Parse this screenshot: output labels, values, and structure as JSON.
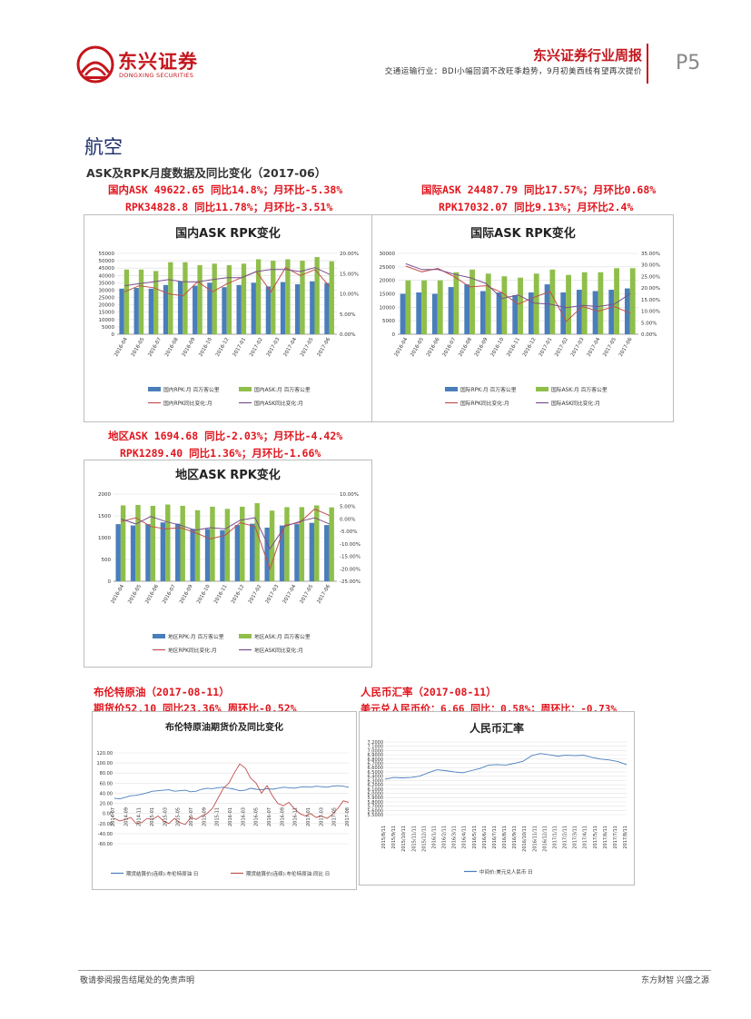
{
  "header": {
    "logo_cn": "东兴证券",
    "logo_en": "DONGXING SECURITIES",
    "report_title": "东兴证券行业周报",
    "report_subtitle": "交通运输行业：BDI小幅回调不改旺季趋势，9月初美西线有望再次提价",
    "page_number": "P5"
  },
  "section": {
    "title": "航空",
    "subtitle": "ASK及RPK月度数据及同比变化（2017-06）"
  },
  "captions": {
    "domestic_line1": "国内ASK 49622.65 同比14.8%；月环比-5.38%",
    "domestic_line2": "RPK34828.8 同比11.78%；月环比-3.51%",
    "intl_line1": "国际ASK 24487.79 同比17.57%；月环比0.68%",
    "intl_line2": "RPK17032.07 同比9.13%；月环比2.4%",
    "regional_line1": "地区ASK 1694.68 同比-2.03%；月环比-4.42%",
    "regional_line2": "RPK1289.40 同比1.36%；月环比-1.66%",
    "brent_line1": "布伦特原油（2017-08-11）",
    "brent_line2": "期货价52.10 同比23.36% 周环比-0.52%",
    "rmb_line1": "人民币汇率（2017-08-11）",
    "rmb_line2": "美元兑人民币价：6.66 同比：0.58%；周环比：-0.73%"
  },
  "footer": {
    "left": "敬请参阅报告结尾处的免责声明",
    "right": "东方财智 兴盛之源"
  },
  "colors": {
    "brand_red": "#c4161c",
    "caption_red": "#e0161e",
    "bar_blue": "#4a7ebb",
    "bar_green": "#8fbf4a",
    "line_red": "#c0504d",
    "line_purple": "#7b4f8e",
    "line_blue": "#4a7ebb"
  },
  "chart_data": [
    {
      "id": "domestic",
      "type": "bar",
      "title": "国内ASK RPK变化",
      "categories": [
        "2016-04",
        "2016-05",
        "2016-06",
        "2016-07",
        "2016-08",
        "2016-09",
        "2016-10",
        "2016-11",
        "2016-12",
        "2017-01",
        "2017-02",
        "2017-03",
        "2017-04",
        "2017-05",
        "2017-06"
      ],
      "x_tick_labels": [
        "2016-04",
        "2016-05",
        "2016-07",
        "2016-08",
        "2016-09",
        "2016-10",
        "2016-12",
        "2017-01",
        "2017-02",
        "2017-03",
        "2017-04",
        "2017-05",
        "2017-06"
      ],
      "y_left_ticks": [
        "0",
        "5000",
        "10000",
        "15000",
        "20000",
        "25000",
        "30000",
        "35000",
        "40000",
        "45000",
        "50000",
        "55000"
      ],
      "y_right_ticks": [
        "0.00%",
        "5.00%",
        "10.00%",
        "15.00%",
        "20.00%"
      ],
      "ylim_left": [
        0,
        55000
      ],
      "ylim_right": [
        0,
        20
      ],
      "series": [
        {
          "name": "国内RPK:月 百万客公里",
          "kind": "bar",
          "color": "#4a7ebb",
          "values": [
            31000,
            31500,
            31000,
            33500,
            36000,
            33000,
            35000,
            32000,
            33500,
            35000,
            32500,
            35500,
            34000,
            36000,
            34800
          ]
        },
        {
          "name": "国内ASK:月 百万客公里",
          "kind": "bar",
          "color": "#8fbf4a",
          "values": [
            44000,
            44000,
            43000,
            49000,
            49000,
            47000,
            48000,
            47000,
            48000,
            51000,
            50000,
            51000,
            50000,
            52500,
            49600
          ]
        },
        {
          "name": "国内RPK同比变化:月",
          "kind": "line",
          "color": "#c0504d",
          "values": [
            10.5,
            12.0,
            11.5,
            10.0,
            9.5,
            13.0,
            10.5,
            12.5,
            14.0,
            15.5,
            10.5,
            16.5,
            14.5,
            16.0,
            11.8
          ]
        },
        {
          "name": "国内ASK同比变化:月",
          "kind": "line",
          "color": "#7b4f8e",
          "values": [
            12.0,
            12.5,
            13.0,
            13.5,
            13.0,
            13.0,
            13.5,
            14.0,
            14.0,
            15.5,
            16.0,
            16.0,
            15.5,
            16.5,
            14.8
          ]
        }
      ],
      "legend": [
        "国内RPK:月 百万客公里",
        "国内ASK:月 百万客公里",
        "国内RPK同比变化:月",
        "国内ASK同比变化:月"
      ]
    },
    {
      "id": "international",
      "type": "bar",
      "title": "国际ASK RPK变化",
      "categories": [
        "2016-04",
        "2016-05",
        "2016-06",
        "2016-07",
        "2016-08",
        "2016-09",
        "2016-10",
        "2016-11",
        "2016-12",
        "2017-01",
        "2017-02",
        "2017-03",
        "2017-04",
        "2017-05",
        "2017-06"
      ],
      "x_tick_labels": [
        "2016-04",
        "2016-05",
        "2016-06",
        "2016-07",
        "2016-08",
        "2016-09",
        "2016-10",
        "2016-11",
        "2016-12",
        "2017-01",
        "2017-02",
        "2017-03",
        "2017-04",
        "2017-05",
        "2017-06"
      ],
      "y_left_ticks": [
        "0",
        "5000",
        "10000",
        "15000",
        "20000",
        "25000",
        "30000"
      ],
      "y_right_ticks": [
        "0.00%",
        "5.00%",
        "10.00%",
        "15.00%",
        "20.00%",
        "25.00%",
        "30.00%",
        "35.00%"
      ],
      "ylim_left": [
        0,
        30000
      ],
      "ylim_right": [
        0,
        35
      ],
      "series": [
        {
          "name": "国际RPK:月 百万客公里",
          "kind": "bar",
          "color": "#4a7ebb",
          "values": [
            15000,
            15500,
            15000,
            17500,
            18500,
            16000,
            15500,
            14500,
            15500,
            18500,
            15500,
            16500,
            16000,
            16500,
            17000
          ]
        },
        {
          "name": "国际ASK:月 百万客公里",
          "kind": "bar",
          "color": "#8fbf4a",
          "values": [
            20000,
            20000,
            20000,
            23000,
            24000,
            22500,
            21500,
            21000,
            22500,
            24000,
            22000,
            23000,
            23000,
            24500,
            24500
          ]
        },
        {
          "name": "国际RPK同比变化:月",
          "kind": "line",
          "color": "#c0504d",
          "values": [
            29.5,
            27.0,
            28.5,
            25.0,
            20.5,
            21.0,
            18.0,
            13.0,
            16.0,
            18.5,
            5.5,
            12.0,
            10.0,
            12.0,
            9.1
          ]
        },
        {
          "name": "国际ASK同比变化:月",
          "kind": "line",
          "color": "#7b4f8e",
          "values": [
            30.5,
            28.0,
            28.0,
            26.0,
            24.5,
            22.0,
            15.5,
            17.0,
            13.5,
            13.0,
            11.5,
            12.5,
            12.0,
            13.0,
            17.6
          ]
        }
      ],
      "legend": [
        "国际RPK:月 百万客公里",
        "国际ASK:月 百万客公里",
        "国际RPK同比变化:月",
        "国际ASK同比变化:月"
      ]
    },
    {
      "id": "regional",
      "type": "bar",
      "title": "地区ASK RPK变化",
      "categories": [
        "2016-04",
        "2016-05",
        "2016-06",
        "2016-07",
        "2016-08",
        "2016-09",
        "2016-10",
        "2016-11",
        "2016-12",
        "2017-01",
        "2017-02",
        "2017-03",
        "2017-04",
        "2017-05",
        "2017-06"
      ],
      "x_tick_labels": [
        "2016-04",
        "2016-05",
        "2016-06",
        "2016-07",
        "2016-09",
        "2016-10",
        "2016-11",
        "2016-12",
        "2017-02",
        "2017-03",
        "2017-04",
        "2017-05",
        "2017-06"
      ],
      "y_left_ticks": [
        "0",
        "500",
        "1000",
        "1500",
        "2000"
      ],
      "y_right_ticks": [
        "-25.00%",
        "-20.00%",
        "-15.00%",
        "-10.00%",
        "-5.00%",
        "0.00%",
        "5.00%",
        "10.00%"
      ],
      "ylim_left": [
        0,
        2000
      ],
      "ylim_right": [
        -25,
        10
      ],
      "series": [
        {
          "name": "地区RPK:月 百万客公里",
          "kind": "bar",
          "color": "#4a7ebb",
          "values": [
            1310,
            1280,
            1310,
            1350,
            1320,
            1200,
            1200,
            1170,
            1290,
            1320,
            1230,
            1280,
            1310,
            1340,
            1289
          ]
        },
        {
          "name": "地区ASK:月 百万客公里",
          "kind": "bar",
          "color": "#8fbf4a",
          "values": [
            1740,
            1750,
            1730,
            1760,
            1730,
            1630,
            1710,
            1660,
            1710,
            1790,
            1620,
            1700,
            1700,
            1740,
            1695
          ]
        },
        {
          "name": "地区RPK同比变化:月",
          "kind": "line",
          "color": "#c0504d",
          "values": [
            -1.0,
            0.5,
            -3.0,
            -4.0,
            -3.5,
            -5.5,
            -8.0,
            -6.5,
            -1.5,
            -3.0,
            -20.0,
            -2.5,
            -1.5,
            4.0,
            1.4
          ]
        },
        {
          "name": "地区ASK同比变化:月",
          "kind": "line",
          "color": "#7b4f8e",
          "values": [
            0.0,
            -2.0,
            1.0,
            -1.0,
            -2.5,
            -4.5,
            -3.5,
            -4.0,
            -0.5,
            0.5,
            -12.0,
            -3.0,
            -1.0,
            0.5,
            -2.0
          ]
        }
      ],
      "legend": [
        "地区RPK:月 百万客公里",
        "地区ASK:月 百万客公里",
        "地区RPK同比变化:月",
        "地区ASK同比变化:月"
      ]
    },
    {
      "id": "brent",
      "type": "line",
      "title": "布伦特原油期货价及同比变化",
      "y_ticks": [
        "-60.00",
        "-40.00",
        "-20.00",
        "0.00",
        "20.00",
        "40.00",
        "60.00",
        "80.00",
        "100.00",
        "120.00"
      ],
      "ylim": [
        -60,
        120
      ],
      "x_tick_labels": [
        "2014-07",
        "2014-09",
        "2014-11",
        "2015-01",
        "2015-03",
        "2015-05",
        "2015-07",
        "2015-09",
        "2015-11",
        "2016-01",
        "2016-03",
        "2016-05",
        "2016-07",
        "2016-09",
        "2016-11",
        "2017-01",
        "2017-03",
        "2017-05",
        "2017-08"
      ],
      "series": [
        {
          "name": "期货结算价(连续):布伦特原油 日",
          "color": "#4a7ebb",
          "values": [
            30,
            29,
            32,
            35,
            36,
            38,
            41,
            44,
            45,
            46,
            47,
            44,
            45,
            46,
            43,
            44,
            48,
            50,
            49,
            51,
            52,
            50,
            48,
            45,
            46,
            50,
            48,
            47,
            49,
            48,
            50,
            52,
            51,
            50,
            52,
            53,
            52,
            54,
            53,
            52,
            54,
            55,
            54,
            52
          ]
        },
        {
          "name": "期货结算价(连续):布伦特原油:同比 日",
          "color": "#c0504d",
          "values": [
            -10,
            -15,
            -12,
            -8,
            -20,
            -18,
            -10,
            -12,
            -5,
            -15,
            -20,
            -10,
            -18,
            -22,
            -8,
            -12,
            -5,
            0,
            10,
            30,
            50,
            60,
            80,
            98,
            90,
            70,
            60,
            40,
            55,
            35,
            20,
            15,
            22,
            10,
            0,
            -5,
            0,
            -8,
            -5,
            -10,
            -2,
            10,
            25,
            22
          ]
        }
      ],
      "legend": [
        "期货结算价(连续):布伦特原油 日",
        "期货结算价(连续):布伦特原油:同比 日"
      ]
    },
    {
      "id": "rmb",
      "type": "line",
      "title": "人民币汇率",
      "y_ticks": [
        "5.5000",
        "5.6000",
        "5.7000",
        "5.8000",
        "5.9000",
        "6.0000",
        "6.1000",
        "6.2000",
        "6.3000",
        "6.4000",
        "6.5000",
        "6.6000",
        "6.7000",
        "6.8000",
        "6.9000",
        "7.0000",
        "7.1000",
        "7.2000"
      ],
      "ylim": [
        5.5,
        7.2
      ],
      "x_tick_labels": [
        "2015/8/11",
        "2015/9/11",
        "2015/10/11",
        "2015/11/11",
        "2015/12/11",
        "2016/1/11",
        "2016/2/11",
        "2016/3/11",
        "2016/4/11",
        "2016/5/11",
        "2016/6/11",
        "2016/7/11",
        "2016/8/11",
        "2016/9/11",
        "2016/10/11",
        "2016/11/11",
        "2016/12/11",
        "2017/1/11",
        "2017/2/11",
        "2017/3/11",
        "2017/4/11",
        "2017/5/11",
        "2017/6/11",
        "2017/7/11",
        "2017/8/11"
      ],
      "series": [
        {
          "name": "中间价:美元兑人民币 日",
          "color": "#4a7ebb",
          "values": [
            6.33,
            6.37,
            6.36,
            6.37,
            6.4,
            6.48,
            6.55,
            6.53,
            6.5,
            6.48,
            6.53,
            6.58,
            6.66,
            6.67,
            6.66,
            6.7,
            6.75,
            6.88,
            6.93,
            6.9,
            6.87,
            6.89,
            6.88,
            6.89,
            6.84,
            6.8,
            6.78,
            6.74,
            6.67
          ]
        }
      ],
      "legend": [
        "中间价:美元兑人民币 日"
      ]
    }
  ]
}
